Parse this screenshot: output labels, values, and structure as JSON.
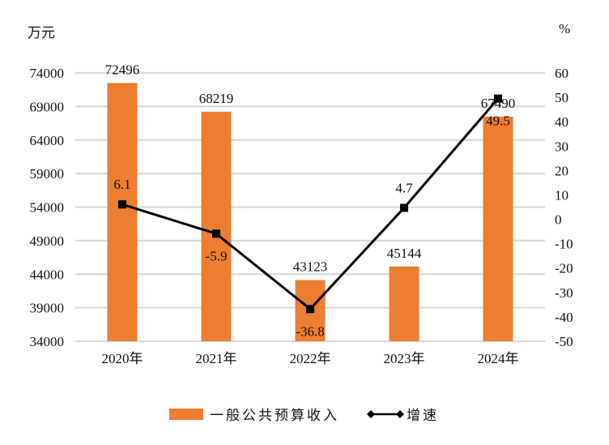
{
  "chart_data": {
    "type": "bar+line",
    "title": "",
    "categories": [
      "2020年",
      "2021年",
      "2022年",
      "2023年",
      "2024年"
    ],
    "series": [
      {
        "name": "一般公共预算收入",
        "type": "bar",
        "axis": "left",
        "color": "#ED7D31",
        "values": [
          72496,
          68219,
          43123,
          45144,
          67490
        ],
        "labels": [
          "72496",
          "68219",
          "43123",
          "45144",
          "67490"
        ]
      },
      {
        "name": "增速",
        "type": "line",
        "axis": "right",
        "color": "#000000",
        "marker": "square",
        "values": [
          6.1,
          -5.9,
          -36.8,
          4.7,
          49.5
        ],
        "labels": [
          "6.1",
          "-5.9",
          "-36.8",
          "4.7",
          "49.5"
        ]
      }
    ],
    "left_axis": {
      "unit": "万元",
      "ylim": [
        34000,
        74000
      ],
      "ticks": [
        74000,
        69000,
        64000,
        59000,
        54000,
        49000,
        44000,
        39000,
        34000
      ]
    },
    "right_axis": {
      "unit": "%",
      "ylim": [
        -50,
        60
      ],
      "ticks": [
        60,
        50,
        40,
        30,
        20,
        10,
        0,
        -10,
        -20,
        -30,
        -40,
        -50
      ]
    },
    "grid": true,
    "grid_color": "#D9D9D9",
    "legend_position": "bottom"
  },
  "axes": {
    "left_unit": "万元",
    "right_unit": "%"
  },
  "legend": {
    "bar_label": "一般公共预算收入",
    "line_label": "增速"
  }
}
